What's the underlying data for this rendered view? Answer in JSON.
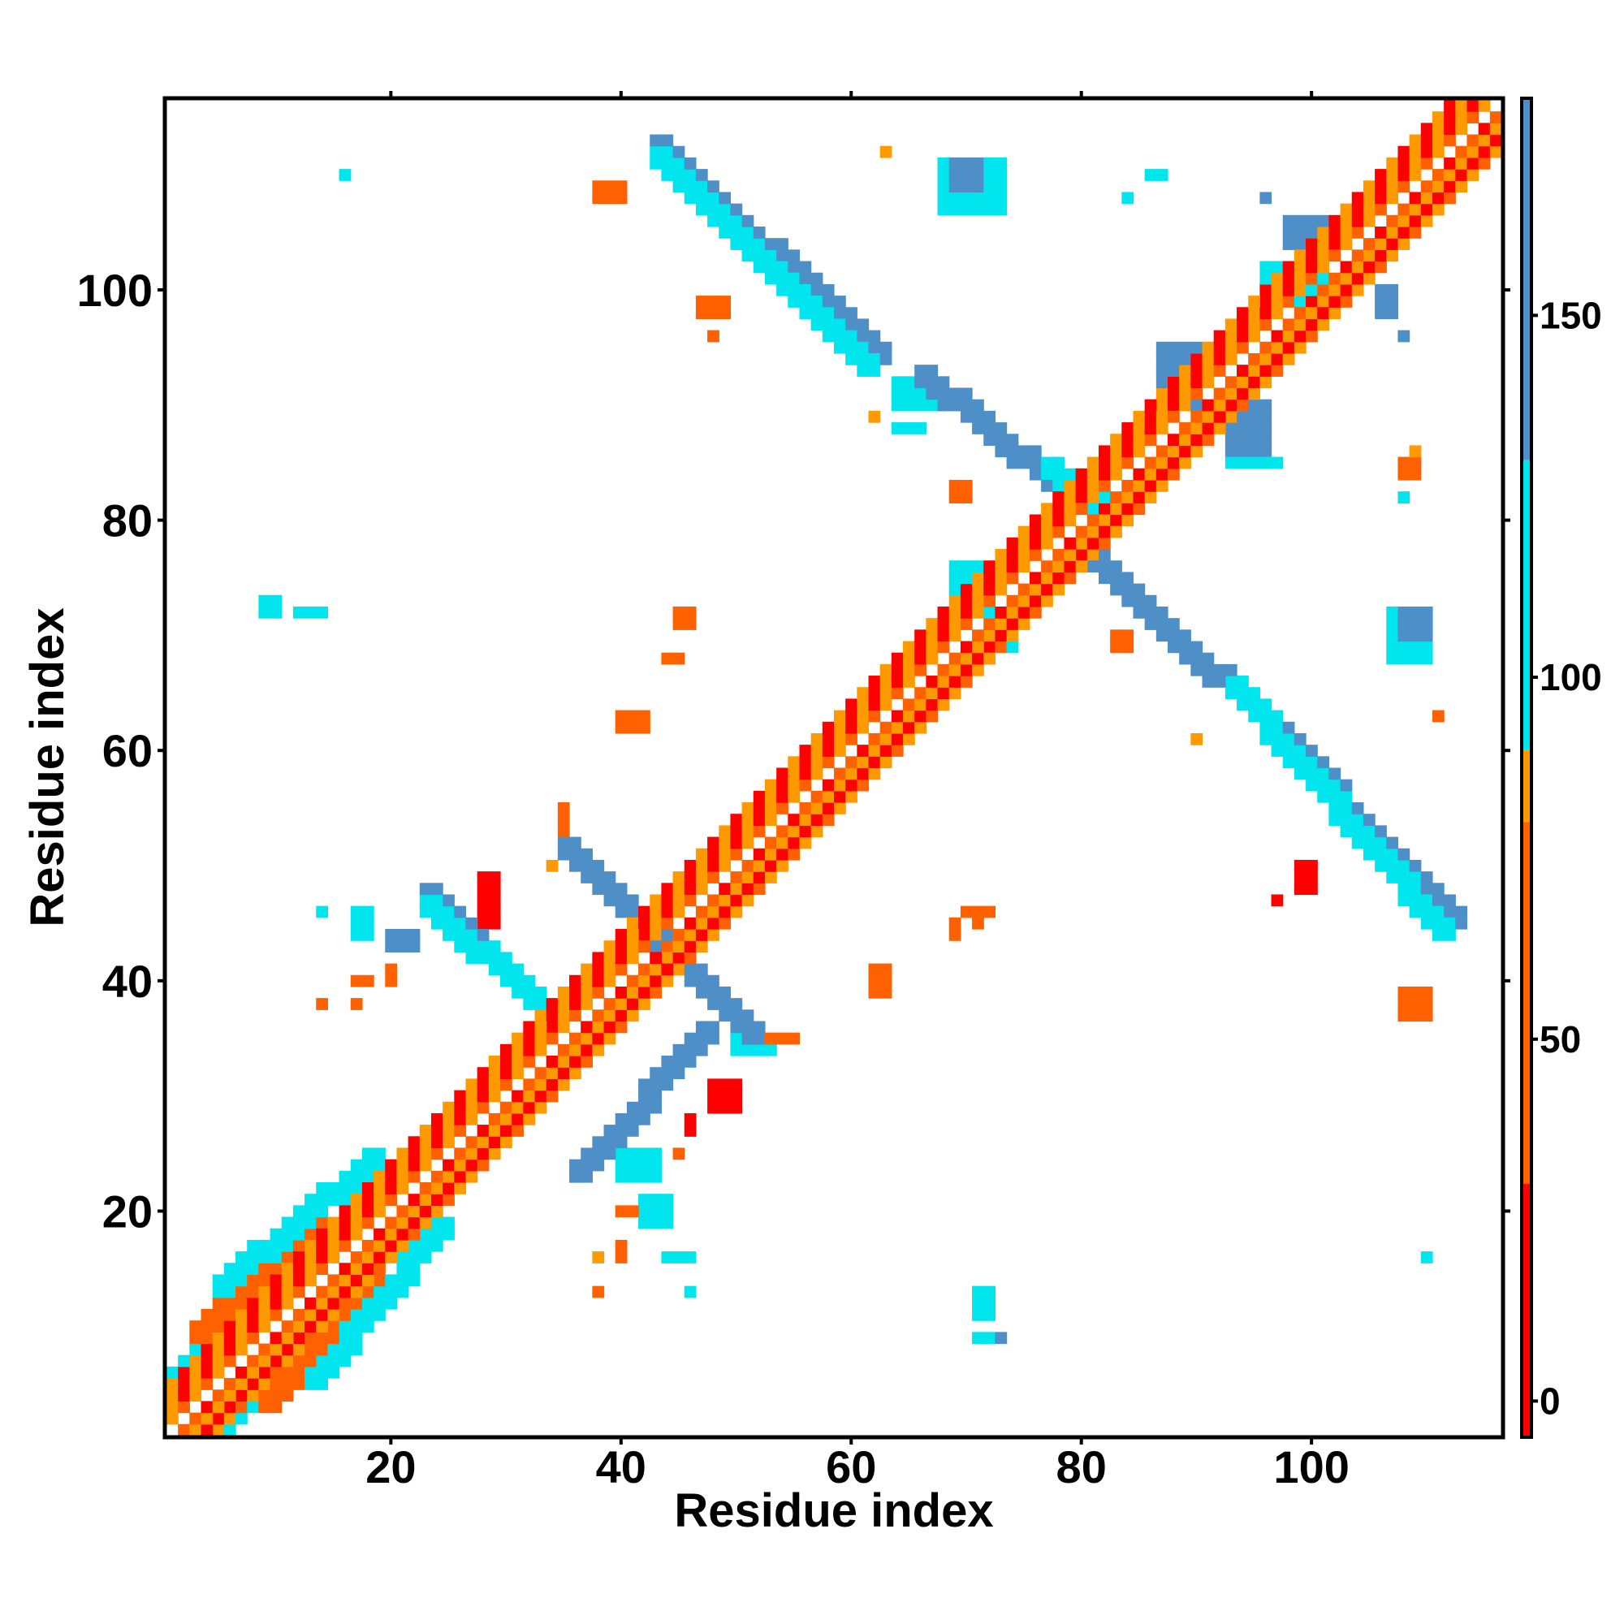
{
  "chart_data": {
    "type": "heatmap",
    "title": "",
    "xlabel": "Residue index",
    "ylabel": "Residue index",
    "xlim": [
      1,
      116
    ],
    "ylim": [
      1,
      116
    ],
    "xticks": [
      20,
      40,
      60,
      80,
      100
    ],
    "xtick_labels": [
      "20",
      "40",
      "60",
      "80",
      "100"
    ],
    "yticks": [
      20,
      40,
      60,
      80,
      100
    ],
    "ytick_labels": [
      "20",
      "40",
      "60",
      "80",
      "100"
    ],
    "grid": false,
    "colorbar": {
      "range": [
        -5,
        180
      ],
      "ticks": [
        0,
        50,
        100,
        150
      ],
      "tick_labels": [
        "0",
        "50",
        "100",
        "150"
      ],
      "bands": [
        {
          "from": -5,
          "to": 30,
          "color": "#ff0000"
        },
        {
          "from": 30,
          "to": 80,
          "color": "#ff6000"
        },
        {
          "from": 80,
          "to": 90,
          "color": "#ff9900"
        },
        {
          "from": 90,
          "to": 130,
          "color": "#00e5ee"
        },
        {
          "from": 130,
          "to": 180,
          "color": "#4f8fc8"
        },
        {
          "from": 180,
          "to": 185,
          "color": "#ffffff"
        }
      ]
    },
    "palette": {
      "red": "#ff0000",
      "orange": "#ff6000",
      "amber": "#ff9900",
      "cyan": "#00e5ee",
      "blue": "#4f8fc8"
    },
    "diagonal_band": {
      "x_start": 1,
      "x_end": 116,
      "pattern": [
        "red",
        "orange",
        "amber",
        "red",
        "amber"
      ]
    },
    "strands": [
      {
        "x0": 1,
        "y0": 5,
        "x1": 8,
        "y1": 12,
        "color": "cyan"
      },
      {
        "x0": 3,
        "y0": 9,
        "x1": 13,
        "y1": 19,
        "color": "orange"
      },
      {
        "x0": 5,
        "y0": 13,
        "x1": 18,
        "y1": 24,
        "color": "cyan"
      },
      {
        "x0": 5,
        "y0": 1,
        "x1": 12,
        "y1": 8,
        "color": "cyan"
      },
      {
        "x0": 9,
        "y0": 3,
        "x1": 19,
        "y1": 13,
        "color": "orange"
      },
      {
        "x0": 13,
        "y0": 5,
        "x1": 24,
        "y1": 18,
        "color": "cyan"
      },
      {
        "x0": 23,
        "y0": 47,
        "x1": 34,
        "y1": 36,
        "color": "blue"
      },
      {
        "x0": 23,
        "y0": 46,
        "x1": 33,
        "y1": 37,
        "color": "cyan"
      },
      {
        "x0": 35,
        "y0": 51,
        "x1": 44,
        "y1": 42,
        "color": "blue"
      },
      {
        "x0": 36,
        "y0": 23,
        "x1": 47,
        "y1": 35,
        "color": "blue"
      },
      {
        "x0": 42,
        "y0": 44,
        "x1": 51,
        "y1": 35,
        "color": "blue"
      },
      {
        "x0": 43,
        "y0": 112,
        "x1": 62,
        "y1": 94,
        "color": "blue"
      },
      {
        "x0": 43,
        "y0": 111,
        "x1": 61,
        "y1": 93,
        "color": "cyan"
      },
      {
        "x0": 66,
        "y0": 92,
        "x1": 78,
        "y1": 82,
        "color": "blue"
      },
      {
        "x0": 77,
        "y0": 84,
        "x1": 82,
        "y1": 80,
        "color": "cyan"
      },
      {
        "x0": 80,
        "y0": 77,
        "x1": 91,
        "y1": 66,
        "color": "blue"
      },
      {
        "x0": 92,
        "y0": 66,
        "x1": 112,
        "y1": 45,
        "color": "blue"
      },
      {
        "x0": 93,
        "y0": 65,
        "x1": 111,
        "y1": 44,
        "color": "cyan"
      }
    ],
    "patches": [
      {
        "x": 16,
        "y": 110,
        "w": 1,
        "h": 1,
        "color": "cyan"
      },
      {
        "x": 38,
        "y": 108,
        "w": 3,
        "h": 2,
        "color": "orange"
      },
      {
        "x": 47,
        "y": 98,
        "w": 3,
        "h": 2,
        "color": "orange"
      },
      {
        "x": 48,
        "y": 96,
        "w": 1,
        "h": 1,
        "color": "orange"
      },
      {
        "x": 63,
        "y": 112,
        "w": 1,
        "h": 1,
        "color": "amber"
      },
      {
        "x": 68,
        "y": 107,
        "w": 6,
        "h": 5,
        "color": "cyan"
      },
      {
        "x": 69,
        "y": 109,
        "w": 3,
        "h": 3,
        "color": "blue"
      },
      {
        "x": 84,
        "y": 108,
        "w": 1,
        "h": 1,
        "color": "cyan"
      },
      {
        "x": 86,
        "y": 110,
        "w": 2,
        "h": 1,
        "color": "cyan"
      },
      {
        "x": 96,
        "y": 108,
        "w": 1,
        "h": 1,
        "color": "blue"
      },
      {
        "x": 98,
        "y": 104,
        "w": 6,
        "h": 3,
        "color": "blue"
      },
      {
        "x": 96,
        "y": 99,
        "w": 6,
        "h": 4,
        "color": "cyan"
      },
      {
        "x": 106,
        "y": 98,
        "w": 2,
        "h": 3,
        "color": "blue"
      },
      {
        "x": 108,
        "y": 96,
        "w": 1,
        "h": 1,
        "color": "blue"
      },
      {
        "x": 87,
        "y": 90,
        "w": 4,
        "h": 6,
        "color": "blue"
      },
      {
        "x": 93,
        "y": 86,
        "w": 4,
        "h": 5,
        "color": "blue"
      },
      {
        "x": 93,
        "y": 85,
        "w": 5,
        "h": 1,
        "color": "cyan"
      },
      {
        "x": 64,
        "y": 90,
        "w": 4,
        "h": 3,
        "color": "cyan"
      },
      {
        "x": 62,
        "y": 89,
        "w": 1,
        "h": 1,
        "color": "amber"
      },
      {
        "x": 64,
        "y": 88,
        "w": 3,
        "h": 1,
        "color": "cyan"
      },
      {
        "x": 69,
        "y": 82,
        "w": 2,
        "h": 2,
        "color": "orange"
      },
      {
        "x": 108,
        "y": 84,
        "w": 2,
        "h": 2,
        "color": "orange"
      },
      {
        "x": 108,
        "y": 82,
        "w": 1,
        "h": 1,
        "color": "cyan"
      },
      {
        "x": 109,
        "y": 86,
        "w": 1,
        "h": 1,
        "color": "amber"
      },
      {
        "x": 9,
        "y": 72,
        "w": 2,
        "h": 2,
        "color": "cyan"
      },
      {
        "x": 12,
        "y": 72,
        "w": 3,
        "h": 1,
        "color": "cyan"
      },
      {
        "x": 45,
        "y": 71,
        "w": 2,
        "h": 2,
        "color": "orange"
      },
      {
        "x": 44,
        "y": 68,
        "w": 2,
        "h": 1,
        "color": "orange"
      },
      {
        "x": 40,
        "y": 62,
        "w": 3,
        "h": 2,
        "color": "orange"
      },
      {
        "x": 69,
        "y": 73,
        "w": 3,
        "h": 4,
        "color": "cyan"
      },
      {
        "x": 72,
        "y": 69,
        "w": 3,
        "h": 4,
        "color": "cyan"
      },
      {
        "x": 83,
        "y": 69,
        "w": 2,
        "h": 2,
        "color": "orange"
      },
      {
        "x": 107,
        "y": 68,
        "w": 4,
        "h": 5,
        "color": "cyan"
      },
      {
        "x": 108,
        "y": 70,
        "w": 3,
        "h": 3,
        "color": "blue"
      },
      {
        "x": 111,
        "y": 63,
        "w": 1,
        "h": 1,
        "color": "orange"
      },
      {
        "x": 90,
        "y": 61,
        "w": 1,
        "h": 1,
        "color": "amber"
      },
      {
        "x": 93,
        "y": 65,
        "w": 2,
        "h": 2,
        "color": "orange"
      },
      {
        "x": 35,
        "y": 53,
        "w": 1,
        "h": 3,
        "color": "orange"
      },
      {
        "x": 34,
        "y": 50,
        "w": 1,
        "h": 1,
        "color": "amber"
      },
      {
        "x": 28,
        "y": 45,
        "w": 2,
        "h": 5,
        "color": "red"
      },
      {
        "x": 26,
        "y": 44,
        "w": 2,
        "h": 2,
        "color": "red"
      },
      {
        "x": 14,
        "y": 46,
        "w": 1,
        "h": 1,
        "color": "cyan"
      },
      {
        "x": 17,
        "y": 44,
        "w": 2,
        "h": 3,
        "color": "cyan"
      },
      {
        "x": 20,
        "y": 43,
        "w": 3,
        "h": 2,
        "color": "blue"
      },
      {
        "x": 20,
        "y": 40,
        "w": 1,
        "h": 2,
        "color": "orange"
      },
      {
        "x": 17,
        "y": 40,
        "w": 2,
        "h": 1,
        "color": "orange"
      },
      {
        "x": 14,
        "y": 38,
        "w": 1,
        "h": 1,
        "color": "orange"
      },
      {
        "x": 17,
        "y": 38,
        "w": 1,
        "h": 1,
        "color": "orange"
      },
      {
        "x": 25,
        "y": 44,
        "w": 1,
        "h": 1,
        "color": "orange"
      },
      {
        "x": 99,
        "y": 48,
        "w": 2,
        "h": 3,
        "color": "red"
      },
      {
        "x": 97,
        "y": 47,
        "w": 1,
        "h": 1,
        "color": "red"
      },
      {
        "x": 70,
        "y": 46,
        "w": 3,
        "h": 1,
        "color": "orange"
      },
      {
        "x": 69,
        "y": 44,
        "w": 1,
        "h": 2,
        "color": "orange"
      },
      {
        "x": 71,
        "y": 45,
        "w": 1,
        "h": 1,
        "color": "orange"
      },
      {
        "x": 62,
        "y": 39,
        "w": 2,
        "h": 3,
        "color": "orange"
      },
      {
        "x": 108,
        "y": 37,
        "w": 3,
        "h": 3,
        "color": "orange"
      },
      {
        "x": 50,
        "y": 34,
        "w": 4,
        "h": 2,
        "color": "cyan"
      },
      {
        "x": 53,
        "y": 35,
        "w": 3,
        "h": 1,
        "color": "orange"
      },
      {
        "x": 48,
        "y": 29,
        "w": 3,
        "h": 3,
        "color": "red"
      },
      {
        "x": 46,
        "y": 27,
        "w": 1,
        "h": 2,
        "color": "red"
      },
      {
        "x": 45,
        "y": 25,
        "w": 1,
        "h": 1,
        "color": "orange"
      },
      {
        "x": 40,
        "y": 23,
        "w": 4,
        "h": 3,
        "color": "cyan"
      },
      {
        "x": 42,
        "y": 19,
        "w": 3,
        "h": 3,
        "color": "cyan"
      },
      {
        "x": 40,
        "y": 20,
        "w": 2,
        "h": 1,
        "color": "orange"
      },
      {
        "x": 44,
        "y": 16,
        "w": 3,
        "h": 1,
        "color": "cyan"
      },
      {
        "x": 38,
        "y": 16,
        "w": 1,
        "h": 1,
        "color": "amber"
      },
      {
        "x": 40,
        "y": 16,
        "w": 1,
        "h": 2,
        "color": "orange"
      },
      {
        "x": 38,
        "y": 13,
        "w": 1,
        "h": 1,
        "color": "orange"
      },
      {
        "x": 46,
        "y": 13,
        "w": 1,
        "h": 1,
        "color": "cyan"
      },
      {
        "x": 71,
        "y": 11,
        "w": 2,
        "h": 3,
        "color": "cyan"
      },
      {
        "x": 71,
        "y": 9,
        "w": 3,
        "h": 1,
        "color": "cyan"
      },
      {
        "x": 73,
        "y": 9,
        "w": 1,
        "h": 1,
        "color": "blue"
      },
      {
        "x": 110,
        "y": 16,
        "w": 1,
        "h": 1,
        "color": "cyan"
      }
    ]
  }
}
